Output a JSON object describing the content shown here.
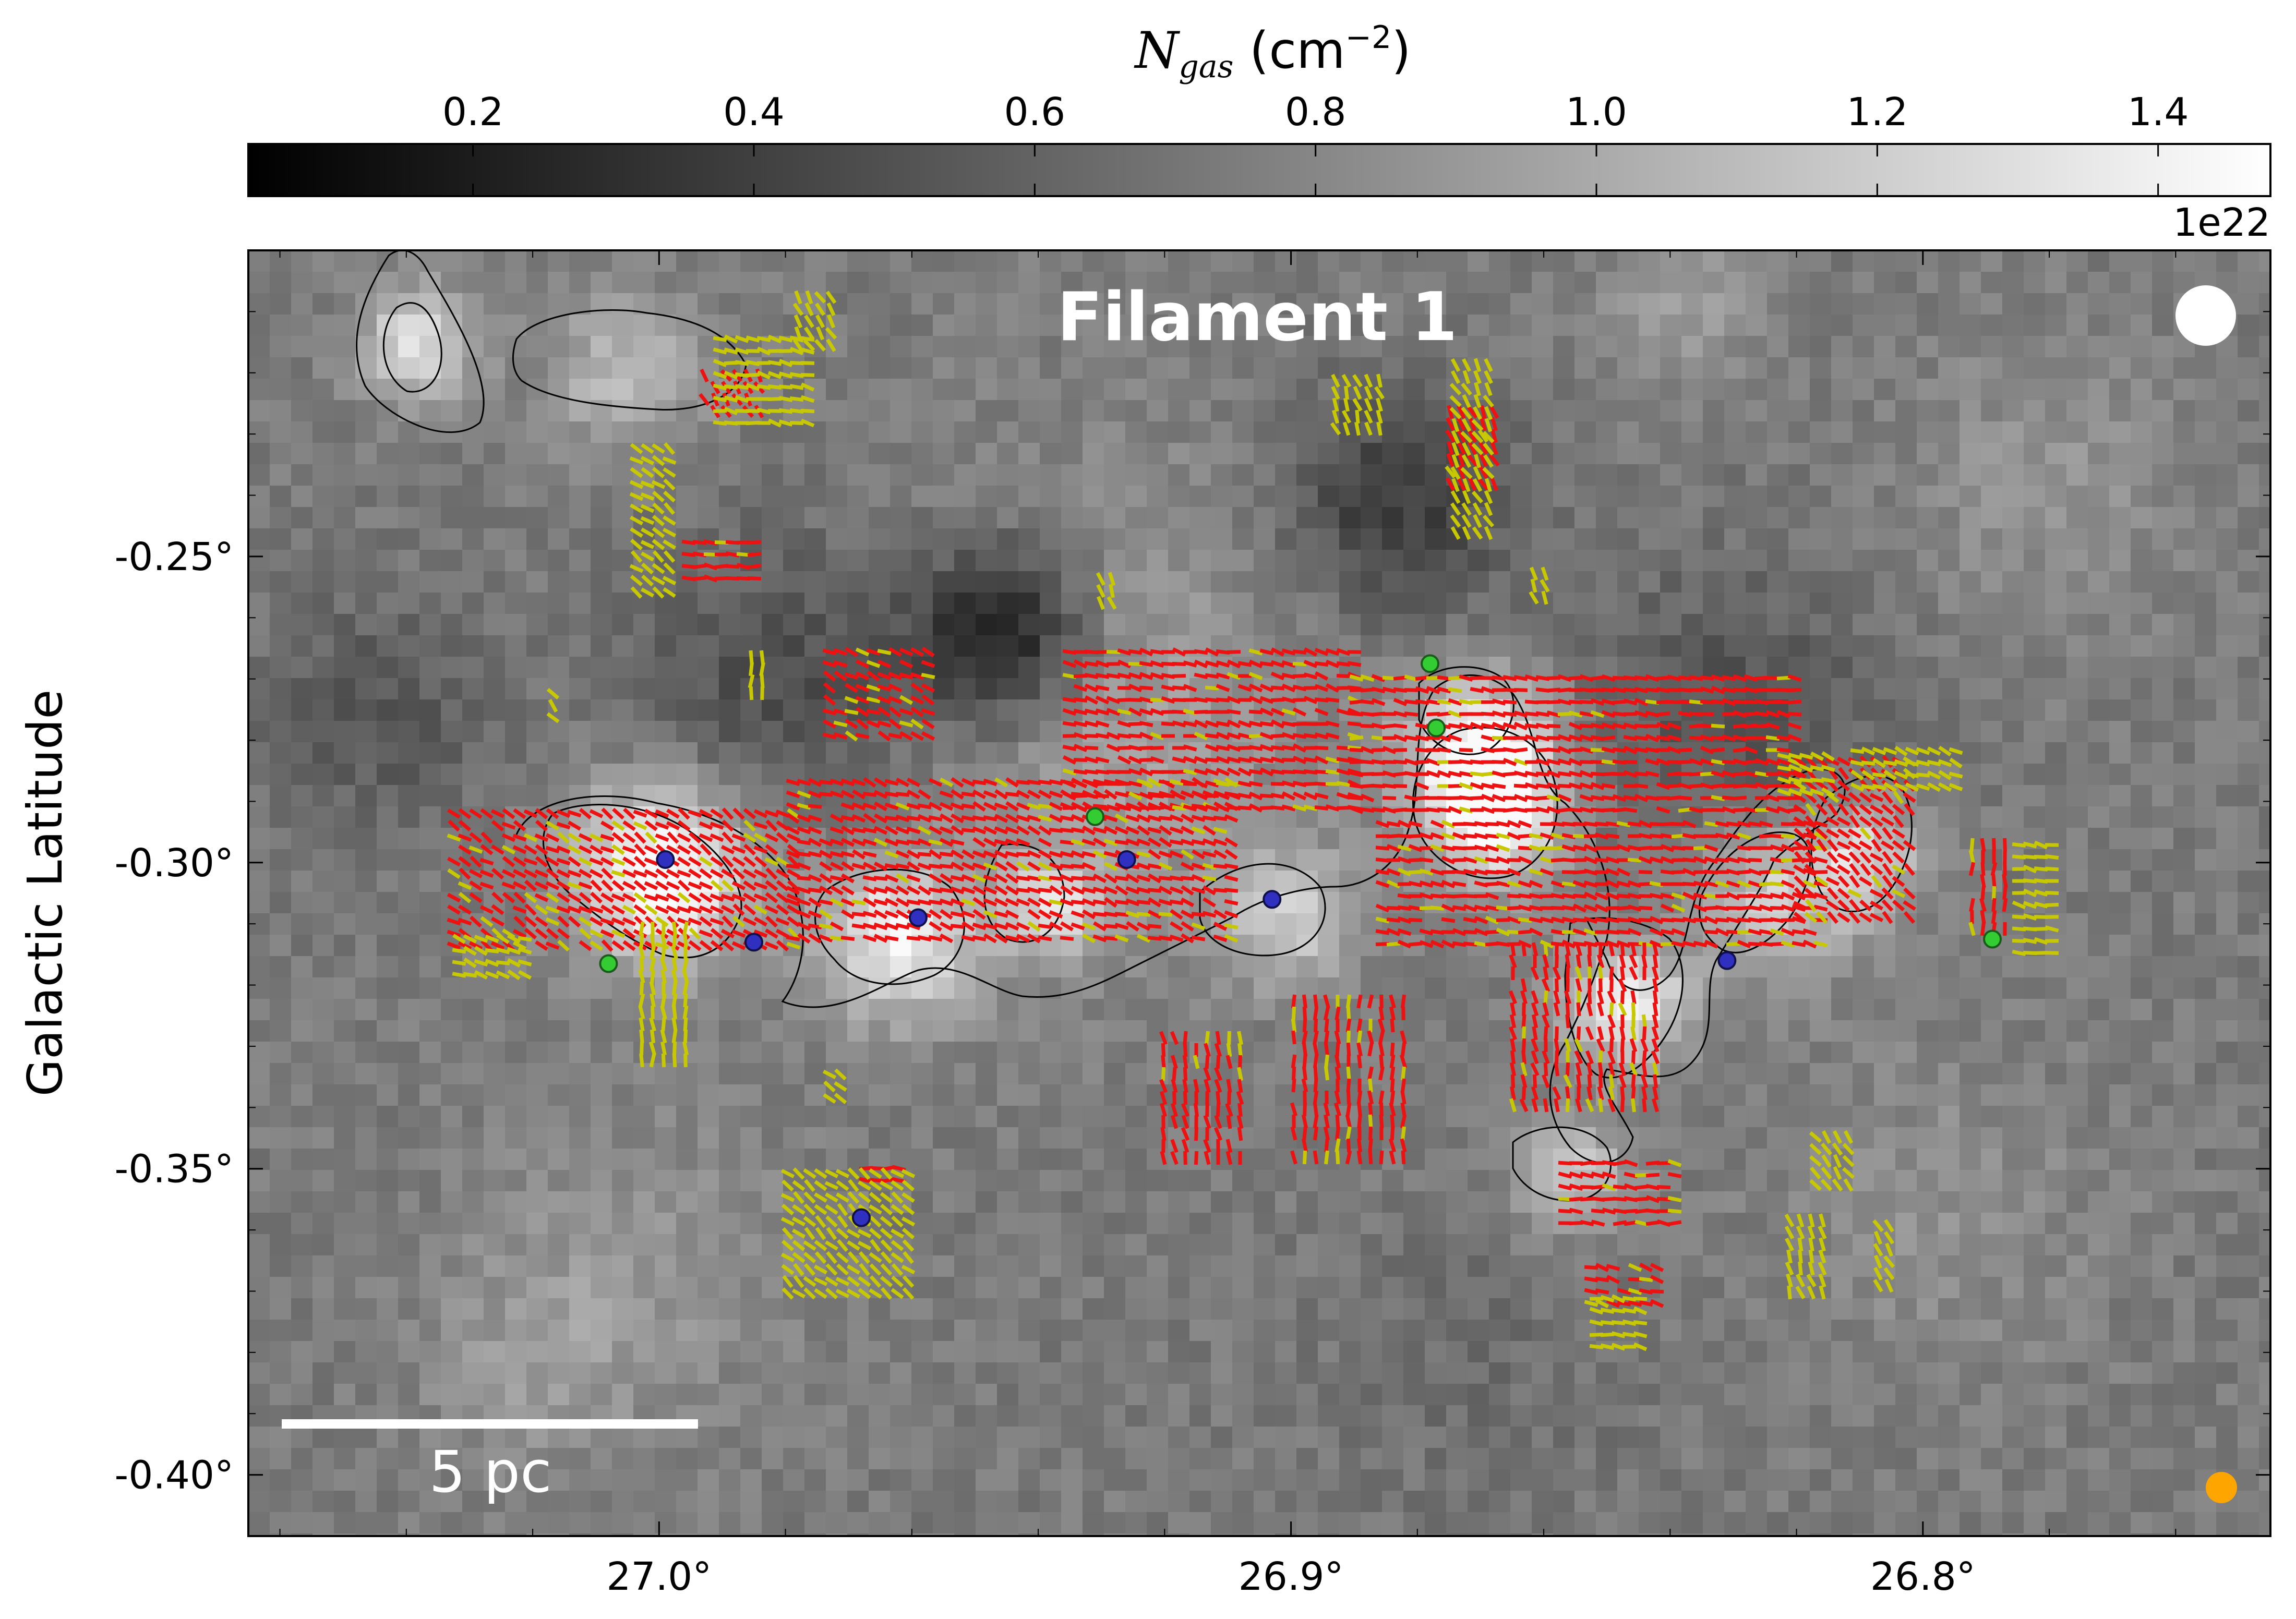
{
  "colorbar": {
    "label_main": "N",
    "label_sub": "gas",
    "label_unit": " (cm",
    "label_exp": "−2",
    "label_close": ")",
    "ticks": [
      "0.2",
      "0.4",
      "0.6",
      "0.8",
      "1.0",
      "1.2",
      "1.4"
    ],
    "tick_values": [
      0.2,
      0.4,
      0.6,
      0.8,
      1.0,
      1.2,
      1.4
    ],
    "range": [
      0.04,
      1.48
    ],
    "offset_text": "1e22",
    "colormap": "gray"
  },
  "chart_data": {
    "type": "heatmap",
    "title": "Filament 1",
    "xlabel": "",
    "ylabel": "Galactic Latitude",
    "x_ticks": [
      "27.0°",
      "26.9°",
      "26.8°"
    ],
    "x_tick_values": [
      27.0,
      26.9,
      26.8
    ],
    "y_ticks": [
      "-0.25°",
      "-0.30°",
      "-0.35°",
      "-0.40°"
    ],
    "y_tick_values": [
      -0.25,
      -0.3,
      -0.35,
      -0.4
    ],
    "xlim": [
      27.065,
      26.745
    ],
    "ylim": [
      -0.41,
      -0.2
    ],
    "x_reversed": true,
    "scale_bar_label": "5 pc",
    "colors": {
      "vector_significant": "#ee1111",
      "vector_marginal": "#c8c800",
      "source_green": "#33cc33",
      "source_blue": "#3030c0",
      "contour": "#000000",
      "beam": "#ffffff",
      "beam_alt": "#ffa500"
    },
    "sources_green": [
      {
        "l": 27.008,
        "b": -0.3165
      },
      {
        "l": 26.931,
        "b": -0.2925
      },
      {
        "l": 26.878,
        "b": -0.2675
      },
      {
        "l": 26.877,
        "b": -0.278
      },
      {
        "l": 26.789,
        "b": -0.3125
      }
    ],
    "sources_blue": [
      {
        "l": 26.999,
        "b": -0.2995
      },
      {
        "l": 26.985,
        "b": -0.313
      },
      {
        "l": 26.959,
        "b": -0.309
      },
      {
        "l": 26.926,
        "b": -0.2995
      },
      {
        "l": 26.903,
        "b": -0.306
      },
      {
        "l": 26.831,
        "b": -0.316
      },
      {
        "l": 26.968,
        "b": -0.358
      }
    ]
  }
}
